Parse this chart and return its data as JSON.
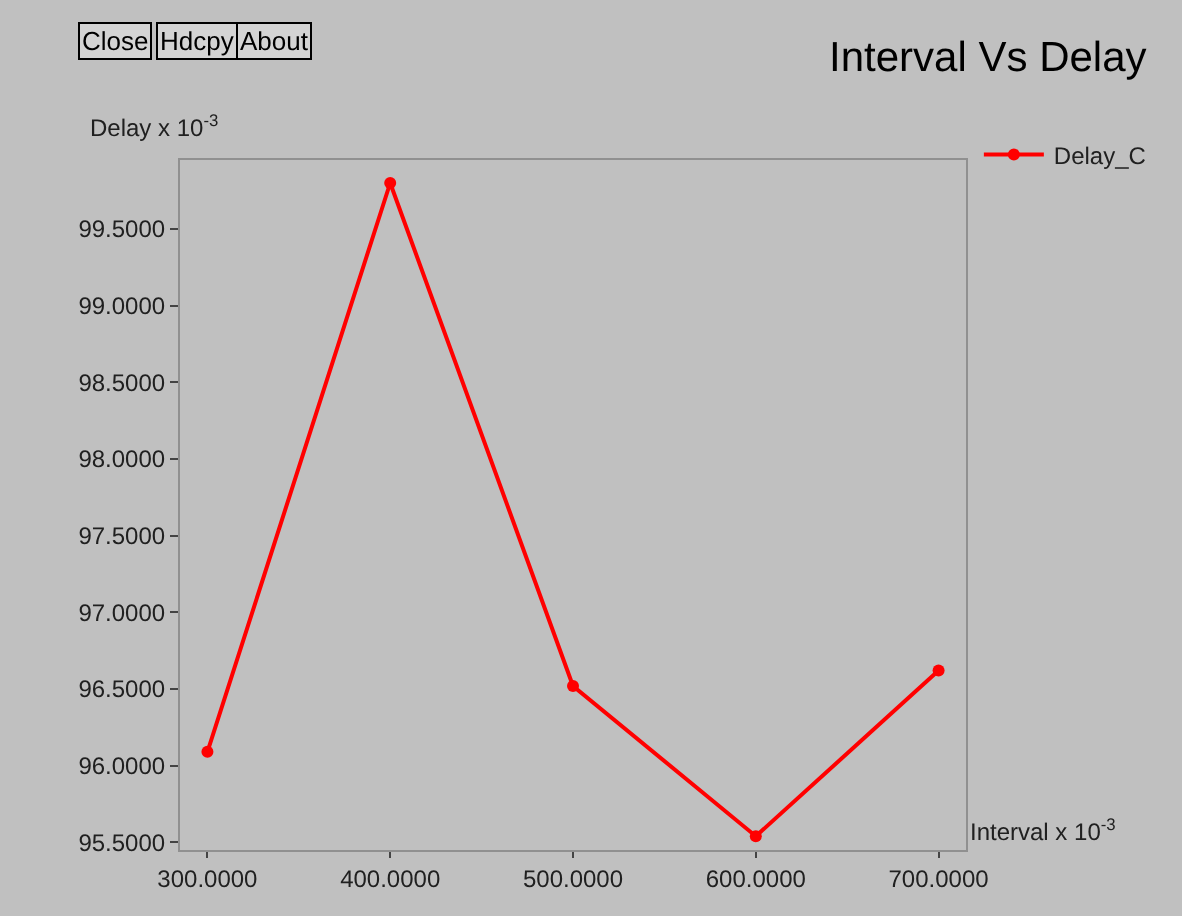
{
  "chart_data": {
    "type": "line",
    "title": "Interval Vs Delay",
    "xlabel": "Interval x 10$^{-3}$",
    "ylabel": "Delay x 10$^{-3}$",
    "annotations": [
      "Close",
      "Hdcpy",
      "About"
    ],
    "x": [
      300,
      400,
      500,
      600,
      700
    ],
    "series": [
      {
        "name": "Delay_C",
        "color": "#ff0000",
        "values": [
          96.09,
          99.8,
          96.52,
          95.54,
          96.62
        ]
      }
    ],
    "xlim": [
      285,
      715
    ],
    "ylim": [
      95.45,
      99.95
    ],
    "xticks": [
      {
        "value": 300,
        "label": "300.0000"
      },
      {
        "value": 400,
        "label": "400.0000"
      },
      {
        "value": 500,
        "label": "500.0000"
      },
      {
        "value": 600,
        "label": "600.0000"
      },
      {
        "value": 700,
        "label": "700.0000"
      }
    ],
    "yticks": [
      {
        "value": 95.5,
        "label": "95.5000"
      },
      {
        "value": 96,
        "label": "96.0000"
      },
      {
        "value": 96.5,
        "label": "96.5000"
      },
      {
        "value": 97,
        "label": "97.0000"
      },
      {
        "value": 97.5,
        "label": "97.5000"
      },
      {
        "value": 98,
        "label": "98.0000"
      },
      {
        "value": 98.5,
        "label": "98.5000"
      },
      {
        "value": 99,
        "label": "99.0000"
      },
      {
        "value": 99.5,
        "label": "99.5000"
      }
    ],
    "grid": false,
    "legend": "top right",
    "marker": "circle",
    "line_style": "solid"
  }
}
